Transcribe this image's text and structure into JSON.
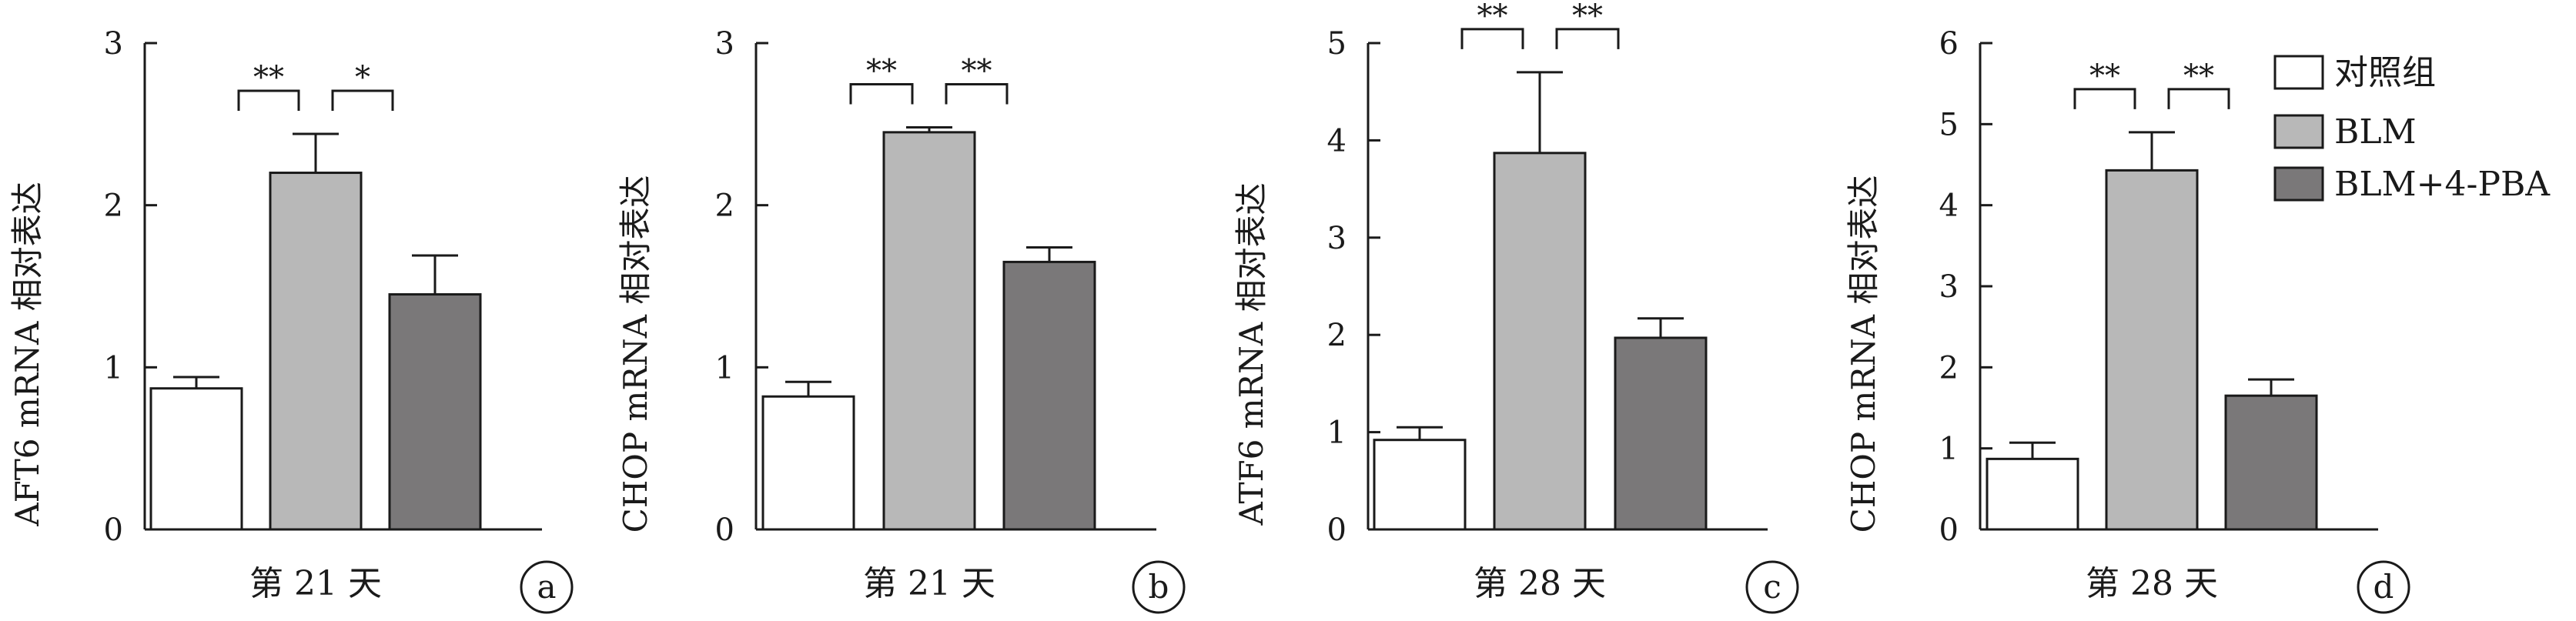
{
  "legend": {
    "items": [
      {
        "label": "对照组",
        "color": "#ffffff"
      },
      {
        "label": "BLM",
        "color": "#b8b8b8"
      },
      {
        "label": "BLM+4-PBA",
        "color": "#7a7879"
      }
    ],
    "placement": "top-right"
  },
  "chart_data": [
    {
      "type": "bar",
      "panel_label": "a",
      "title": "",
      "xlabel": "第 21 天",
      "ylabel": "AFT6 mRNA 相对表达",
      "ylim": [
        0,
        3
      ],
      "yticks": [
        "0",
        "1",
        "2",
        "3"
      ],
      "categories": [
        "对照组",
        "BLM",
        "BLM+4-PBA"
      ],
      "values": [
        0.87,
        2.2,
        1.45
      ],
      "errors": [
        0.07,
        0.24,
        0.24
      ],
      "significance": [
        {
          "from": 0,
          "to": 1,
          "label": "**"
        },
        {
          "from": 1,
          "to": 2,
          "label": "*"
        }
      ],
      "grid": false
    },
    {
      "type": "bar",
      "panel_label": "b",
      "title": "",
      "xlabel": "第 21 天",
      "ylabel": "CHOP mRNA 相对表达",
      "ylim": [
        0,
        3
      ],
      "yticks": [
        "0",
        "1",
        "2",
        "3"
      ],
      "categories": [
        "对照组",
        "BLM",
        "BLM+4-PBA"
      ],
      "values": [
        0.82,
        2.45,
        1.65
      ],
      "errors": [
        0.09,
        0.03,
        0.09
      ],
      "significance": [
        {
          "from": 0,
          "to": 1,
          "label": "**"
        },
        {
          "from": 1,
          "to": 2,
          "label": "**"
        }
      ],
      "grid": false
    },
    {
      "type": "bar",
      "panel_label": "c",
      "title": "",
      "xlabel": "第 28 天",
      "ylabel": "ATF6 mRNA 相对表达",
      "ylim": [
        0,
        5
      ],
      "yticks": [
        "0",
        "1",
        "2",
        "3",
        "4",
        "5"
      ],
      "categories": [
        "对照组",
        "BLM",
        "BLM+4-PBA"
      ],
      "values": [
        0.92,
        3.87,
        1.97
      ],
      "errors": [
        0.13,
        0.83,
        0.2
      ],
      "significance": [
        {
          "from": 0,
          "to": 1,
          "label": "**"
        },
        {
          "from": 1,
          "to": 2,
          "label": "**"
        }
      ],
      "grid": false
    },
    {
      "type": "bar",
      "panel_label": "d",
      "title": "",
      "xlabel": "第 28 天",
      "ylabel": "CHOP mRNA 相对表达",
      "ylim": [
        0,
        6
      ],
      "yticks": [
        "0",
        "1",
        "2",
        "3",
        "4",
        "5",
        "6"
      ],
      "categories": [
        "对照组",
        "BLM",
        "BLM+4-PBA"
      ],
      "values": [
        0.87,
        4.43,
        1.65
      ],
      "errors": [
        0.2,
        0.47,
        0.2
      ],
      "significance": [
        {
          "from": 0,
          "to": 1,
          "label": "**"
        },
        {
          "from": 1,
          "to": 2,
          "label": "**"
        }
      ],
      "grid": false
    }
  ]
}
